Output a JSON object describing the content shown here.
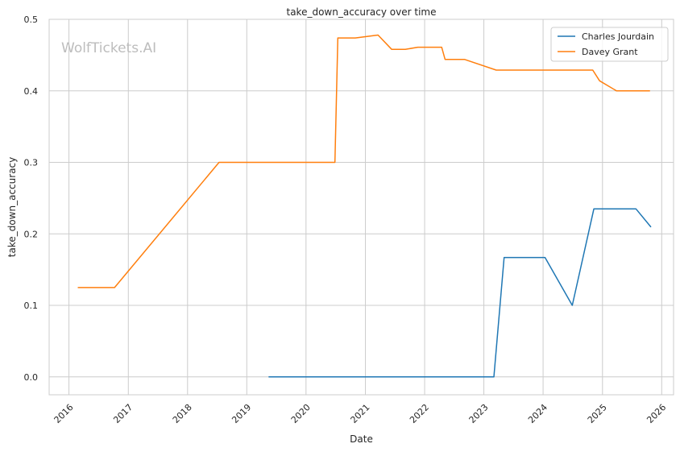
{
  "chart_data": {
    "type": "line",
    "title": "take_down_accuracy over time",
    "xlabel": "Date",
    "ylabel": "take_down_accuracy",
    "watermark": "WolfTickets.AI",
    "x_ticks": [
      "2016",
      "2017",
      "2018",
      "2019",
      "2020",
      "2021",
      "2022",
      "2023",
      "2024",
      "2025",
      "2026"
    ],
    "y_ticks": [
      "0.0",
      "0.1",
      "0.2",
      "0.3",
      "0.4",
      "0.5"
    ],
    "xlim": [
      "2015-09-01",
      "2026-03-15"
    ],
    "ylim": [
      -0.025,
      0.5
    ],
    "grid": true,
    "legend_position": "top-right",
    "series": [
      {
        "name": "Charles Jourdain",
        "color": "#1f77b4",
        "points": [
          [
            "2019-05-18",
            0.0
          ],
          [
            "2023-03-04",
            0.0
          ],
          [
            "2023-05-06",
            0.167
          ],
          [
            "2024-01-13",
            0.167
          ],
          [
            "2024-06-29",
            0.1
          ],
          [
            "2024-11-09",
            0.235
          ],
          [
            "2025-07-26",
            0.235
          ],
          [
            "2025-10-25",
            0.21
          ]
        ]
      },
      {
        "name": "Davey Grant",
        "color": "#ff7f0e",
        "points": [
          [
            "2016-02-27",
            0.125
          ],
          [
            "2016-10-08",
            0.125
          ],
          [
            "2018-07-14",
            0.3
          ],
          [
            "2020-06-27",
            0.3
          ],
          [
            "2020-07-15",
            0.474
          ],
          [
            "2020-10-31",
            0.474
          ],
          [
            "2021-03-20",
            0.478
          ],
          [
            "2021-06-12",
            0.458
          ],
          [
            "2021-09-04",
            0.458
          ],
          [
            "2021-11-20",
            0.461
          ],
          [
            "2022-04-16",
            0.461
          ],
          [
            "2022-05-07",
            0.444
          ],
          [
            "2022-09-03",
            0.444
          ],
          [
            "2023-03-18",
            0.429
          ],
          [
            "2024-11-02",
            0.429
          ],
          [
            "2024-12-14",
            0.414
          ],
          [
            "2025-03-29",
            0.4
          ],
          [
            "2025-10-18",
            0.4
          ]
        ]
      }
    ]
  }
}
